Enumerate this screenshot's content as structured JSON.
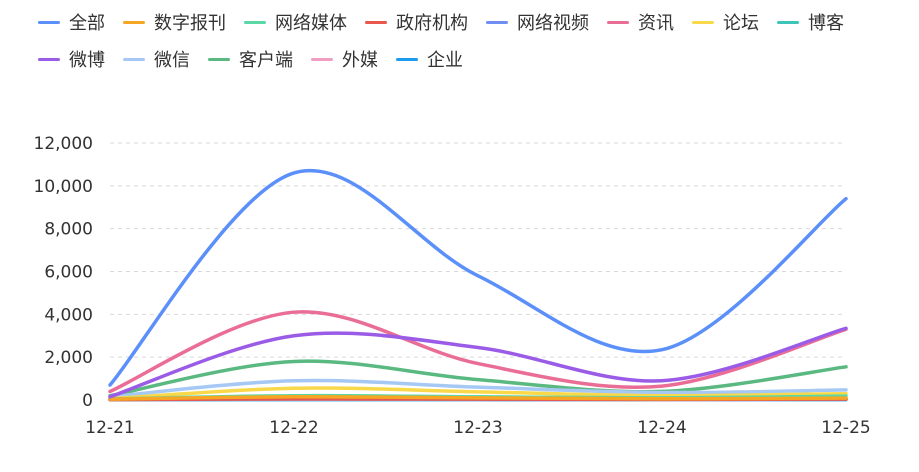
{
  "legend": [
    {
      "label": "全部",
      "color": "#5b8ff9"
    },
    {
      "label": "数字报刊",
      "color": "#f6a623"
    },
    {
      "label": "网络媒体",
      "color": "#5ad8a6"
    },
    {
      "label": "政府机构",
      "color": "#e8584f"
    },
    {
      "label": "网络视频",
      "color": "#6f8ff2"
    },
    {
      "label": "资讯",
      "color": "#ea6d96"
    },
    {
      "label": "论坛",
      "color": "#f9d84a"
    },
    {
      "label": "博客",
      "color": "#3cc5b8"
    },
    {
      "label": "微博",
      "color": "#9a5ce6"
    },
    {
      "label": "微信",
      "color": "#a6c8f5"
    },
    {
      "label": "客户端",
      "color": "#5ab981"
    },
    {
      "label": "外媒",
      "color": "#f19ec2"
    },
    {
      "label": "企业",
      "color": "#1d9bf0"
    }
  ],
  "chart_data": {
    "type": "line",
    "categories": [
      "12-21",
      "12-22",
      "12-23",
      "12-24",
      "12-25"
    ],
    "ylim": [
      0,
      12000
    ],
    "yticks": [
      0,
      2000,
      4000,
      6000,
      8000,
      10000,
      12000
    ],
    "ytick_labels": [
      "0",
      "2,000",
      "4,000",
      "6,000",
      "8,000",
      "10,000",
      "12,000"
    ],
    "grid": "horizontal-dashed",
    "legend_position": "top-left",
    "series": [
      {
        "name": "企业",
        "color": "#1d9bf0",
        "values": [
          10,
          20,
          15,
          10,
          20
        ]
      },
      {
        "name": "外媒",
        "color": "#f19ec2",
        "values": [
          20,
          40,
          30,
          20,
          40
        ]
      },
      {
        "name": "客户端",
        "color": "#5ab981",
        "values": [
          200,
          1800,
          950,
          400,
          1550
        ]
      },
      {
        "name": "微信",
        "color": "#a6c8f5",
        "values": [
          150,
          900,
          600,
          350,
          470
        ]
      },
      {
        "name": "博客",
        "color": "#3cc5b8",
        "values": [
          20,
          50,
          40,
          30,
          40
        ]
      },
      {
        "name": "论坛",
        "color": "#f9d84a",
        "values": [
          60,
          550,
          380,
          200,
          300
        ]
      },
      {
        "name": "资讯",
        "color": "#ea6d96",
        "values": [
          400,
          4100,
          1700,
          650,
          3300
        ]
      },
      {
        "name": "网络视频",
        "color": "#6f8ff2",
        "values": [
          30,
          80,
          60,
          40,
          70
        ]
      },
      {
        "name": "政府机构",
        "color": "#e8584f",
        "values": [
          20,
          50,
          40,
          30,
          40
        ]
      },
      {
        "name": "网络媒体",
        "color": "#5ad8a6",
        "values": [
          50,
          200,
          150,
          100,
          180
        ]
      },
      {
        "name": "数字报刊",
        "color": "#f6a623",
        "values": [
          40,
          150,
          100,
          60,
          90
        ]
      },
      {
        "name": "微博",
        "color": "#9a5ce6",
        "values": [
          150,
          3000,
          2450,
          900,
          3350
        ]
      },
      {
        "name": "全部",
        "color": "#5b8ff9",
        "values": [
          700,
          10600,
          5800,
          2350,
          9400
        ]
      }
    ]
  }
}
